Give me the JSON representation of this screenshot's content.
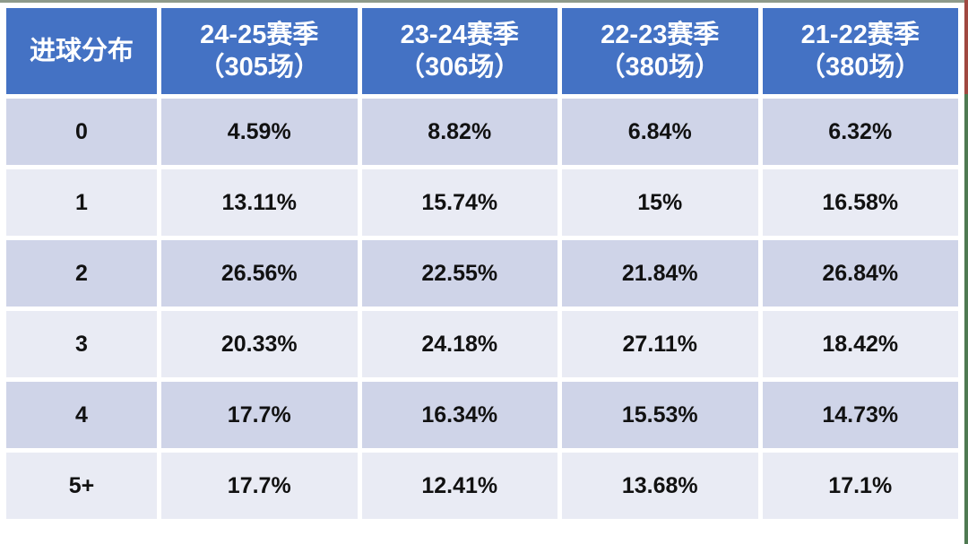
{
  "table": {
    "corner_label": "进球分布",
    "columns": [
      {
        "title": "24-25赛季",
        "subtitle": "（305场）"
      },
      {
        "title": "23-24赛季",
        "subtitle": "（306场）"
      },
      {
        "title": "22-23赛季",
        "subtitle": "（380场）"
      },
      {
        "title": "21-22赛季",
        "subtitle": "（380场）"
      }
    ],
    "rows": [
      {
        "label": "0",
        "values": [
          "4.59%",
          "8.82%",
          "6.84%",
          "6.32%"
        ]
      },
      {
        "label": "1",
        "values": [
          "13.11%",
          "15.74%",
          "15%",
          "16.58%"
        ]
      },
      {
        "label": "2",
        "values": [
          "26.56%",
          "22.55%",
          "21.84%",
          "26.84%"
        ]
      },
      {
        "label": "3",
        "values": [
          "20.33%",
          "24.18%",
          "27.11%",
          "18.42%"
        ]
      },
      {
        "label": "4",
        "values": [
          "17.7%",
          "16.34%",
          "15.53%",
          "14.73%"
        ]
      },
      {
        "label": "5+",
        "values": [
          "17.7%",
          "12.41%",
          "13.68%",
          "17.1%"
        ]
      }
    ],
    "colors": {
      "header_bg": "#4472C4",
      "header_text": "#FFFFFF",
      "row_band_dark": "#CFD4E8",
      "row_band_light": "#E9EBF4",
      "cell_text": "#111111",
      "grid_gap": "#FFFFFF",
      "edge_top_line": "#8E9A8A",
      "edge_right_green": "#4F7A52",
      "edge_right_maroon": "#A04840"
    }
  },
  "chart_data": {
    "type": "table",
    "title": "进球分布",
    "unit": "%",
    "categories": [
      "0",
      "1",
      "2",
      "3",
      "4",
      "5+"
    ],
    "series": [
      {
        "name": "24-25赛季（305场）",
        "games": 305,
        "values": [
          4.59,
          13.11,
          26.56,
          20.33,
          17.7,
          17.7
        ]
      },
      {
        "name": "23-24赛季（306场）",
        "games": 306,
        "values": [
          8.82,
          15.74,
          22.55,
          24.18,
          16.34,
          12.41
        ]
      },
      {
        "name": "22-23赛季（380场）",
        "games": 380,
        "values": [
          6.84,
          15.0,
          21.84,
          27.11,
          15.53,
          13.68
        ]
      },
      {
        "name": "21-22赛季（380场）",
        "games": 380,
        "values": [
          6.32,
          16.58,
          26.84,
          18.42,
          14.73,
          17.1
        ]
      }
    ]
  }
}
